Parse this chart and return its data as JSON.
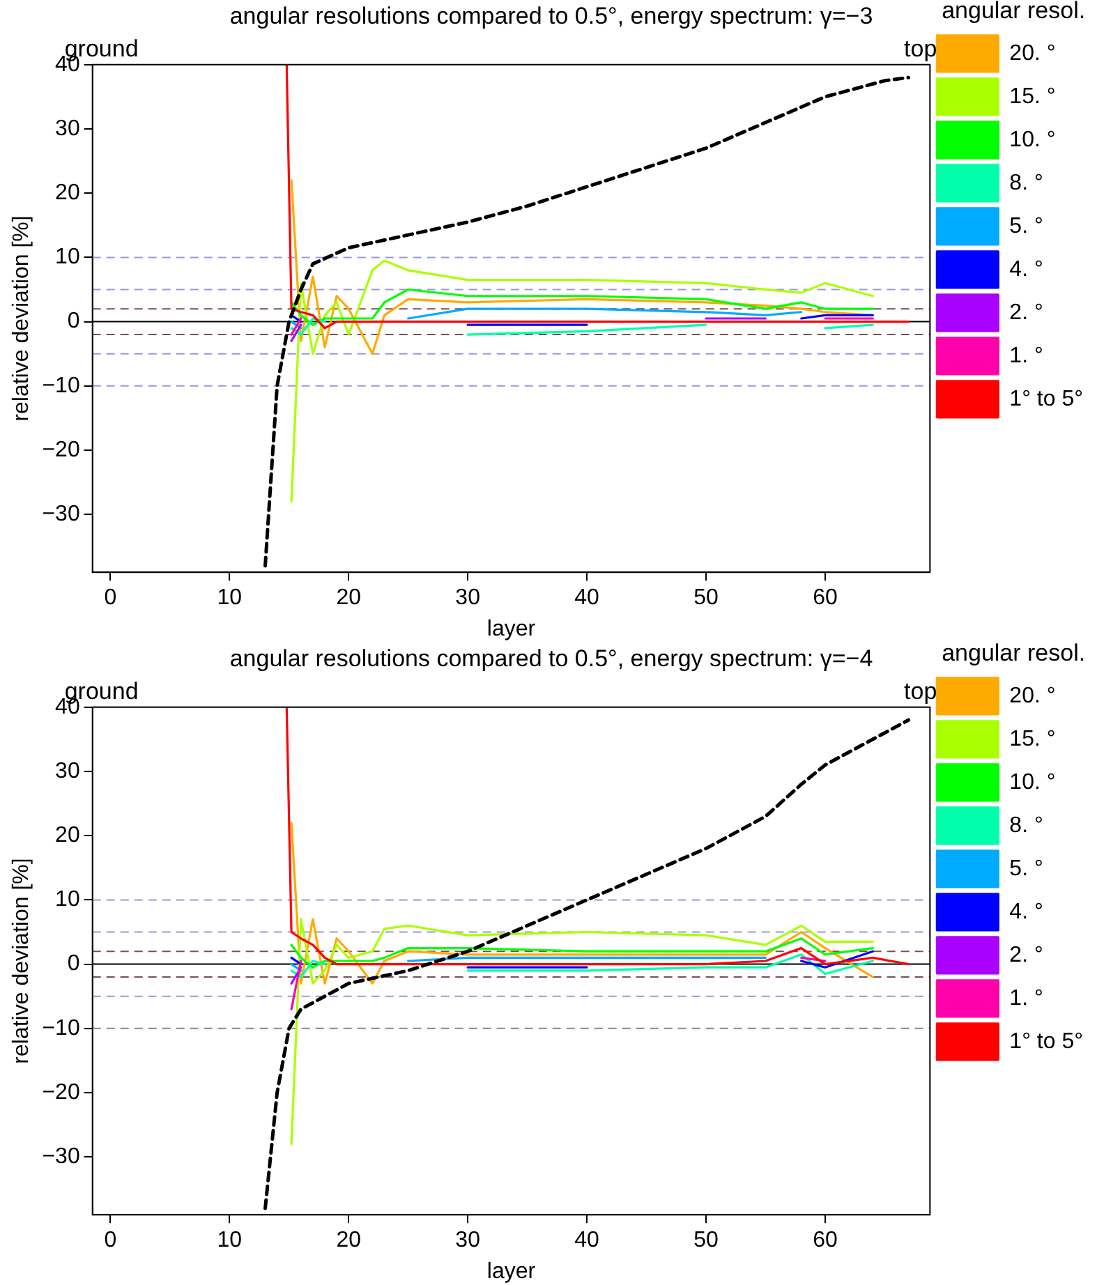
{
  "chart_data": [
    {
      "type": "line",
      "title": "angular resolutions compared to 0.5°, energy spectrum: γ=−3",
      "xlabel": "layer",
      "ylabel": "relative deviation [%]",
      "legend_title": "angular resol.",
      "legend": "right",
      "grid": false,
      "marker": "none",
      "line_style": "solid",
      "annotations": [
        "ground",
        "top"
      ],
      "xlim": [
        -1.5,
        68.8
      ],
      "ylim": [
        -39,
        40
      ],
      "xticks": [
        0,
        10,
        20,
        30,
        40,
        50,
        60
      ],
      "yticks": [
        -30,
        -20,
        -10,
        0,
        10,
        20,
        30,
        40
      ],
      "ref_lines": [
        {
          "axis": "y",
          "value": 10,
          "color": "#9999dd",
          "line_style": "dashed"
        },
        {
          "axis": "y",
          "value": 5,
          "color": "#9999dd",
          "line_style": "dashed"
        },
        {
          "axis": "y",
          "value": 2,
          "color": "#7a5050",
          "line_style": "dashed"
        },
        {
          "axis": "y",
          "value": 0,
          "color": "#000000",
          "line_style": "solid"
        },
        {
          "axis": "y",
          "value": -2,
          "color": "#7a5050",
          "line_style": "dashed"
        },
        {
          "axis": "y",
          "value": -5,
          "color": "#9999dd",
          "line_style": "dashed"
        },
        {
          "axis": "y",
          "value": -10,
          "color": "#9999dd",
          "line_style": "dashed"
        }
      ],
      "x": [
        14.8,
        15.2,
        16,
        17,
        18,
        19,
        20,
        22,
        23,
        25,
        30,
        40,
        50,
        55,
        58,
        60,
        64,
        67
      ],
      "series": [
        {
          "name": "20. °",
          "color": "#ffaa00",
          "values": [
            null,
            22,
            -3,
            7,
            -4,
            4,
            2,
            -5,
            1,
            3.5,
            3,
            3.5,
            3,
            2.5,
            2,
            1.5,
            1,
            null
          ]
        },
        {
          "name": "15. °",
          "color": "#aaff00",
          "values": [
            null,
            -28,
            6,
            -5,
            1,
            3,
            -2,
            8,
            9.5,
            8,
            6.5,
            6.5,
            6,
            5,
            4.5,
            6,
            4,
            null
          ]
        },
        {
          "name": "10. °",
          "color": "#00ff00",
          "values": [
            null,
            3,
            1,
            -0.5,
            0.5,
            0.5,
            0.5,
            0.5,
            3,
            5,
            4,
            4,
            3.5,
            2,
            3,
            2,
            2,
            null
          ]
        },
        {
          "name": "8. °",
          "color": "#00ffaa",
          "values": [
            null,
            -1,
            -2,
            0.5,
            0,
            null,
            null,
            null,
            null,
            null,
            -2,
            -1.5,
            -0.5,
            null,
            null,
            -1,
            -0.5,
            null
          ]
        },
        {
          "name": "5. °",
          "color": "#00aaff",
          "values": [
            null,
            0,
            -1,
            null,
            null,
            null,
            null,
            null,
            null,
            0.5,
            2,
            2,
            1.5,
            1,
            1.5,
            null,
            null,
            null
          ]
        },
        {
          "name": "4. °",
          "color": "#0000ff",
          "values": [
            null,
            1,
            0,
            null,
            null,
            null,
            null,
            null,
            null,
            null,
            -0.5,
            -0.5,
            null,
            null,
            0.5,
            1,
            1,
            null
          ]
        },
        {
          "name": "2. °",
          "color": "#aa00ff",
          "values": [
            null,
            -3,
            -0.5,
            null,
            null,
            null,
            null,
            null,
            null,
            null,
            null,
            null,
            0.5,
            0.5,
            null,
            null,
            null,
            null
          ]
        },
        {
          "name": "1. °",
          "color": "#ff00aa",
          "values": [
            null,
            -2,
            0.5,
            null,
            null,
            null,
            null,
            null,
            null,
            null,
            null,
            null,
            null,
            null,
            null,
            0.5,
            0.5,
            null
          ]
        },
        {
          "name": "1° to 5°",
          "color": "#ff0000",
          "values": [
            40,
            2,
            1.5,
            1,
            -1,
            0,
            0,
            0,
            0,
            0,
            0,
            0,
            0,
            0,
            0,
            0,
            0,
            0
          ]
        },
        {
          "color": "#000000",
          "line_style": "dashed",
          "x": [
            13,
            14,
            15,
            16,
            17,
            20,
            25,
            30,
            35,
            40,
            45,
            50,
            55,
            60,
            65,
            67
          ],
          "values": [
            -38,
            -10,
            0,
            5,
            9,
            11.5,
            13.5,
            15.5,
            18,
            21,
            24,
            27,
            31,
            35,
            37.5,
            38
          ]
        }
      ]
    },
    {
      "type": "line",
      "title": "angular resolutions compared to 0.5°, energy spectrum: γ=−4",
      "xlabel": "layer",
      "ylabel": "relative deviation [%]",
      "legend_title": "angular resol.",
      "legend": "right",
      "grid": false,
      "marker": "none",
      "line_style": "solid",
      "annotations": [
        "ground",
        "top"
      ],
      "xlim": [
        -1.5,
        68.8
      ],
      "ylim": [
        -39,
        40
      ],
      "xticks": [
        0,
        10,
        20,
        30,
        40,
        50,
        60
      ],
      "yticks": [
        -30,
        -20,
        -10,
        0,
        10,
        20,
        30,
        40
      ],
      "ref_lines": [
        {
          "axis": "y",
          "value": 10,
          "color": "#9999dd",
          "line_style": "dashed"
        },
        {
          "axis": "y",
          "value": 5,
          "color": "#9999dd",
          "line_style": "dashed"
        },
        {
          "axis": "y",
          "value": 2,
          "color": "#7a5050",
          "line_style": "dashed"
        },
        {
          "axis": "y",
          "value": 0,
          "color": "#000000",
          "line_style": "solid"
        },
        {
          "axis": "y",
          "value": -2,
          "color": "#7a5050",
          "line_style": "dashed"
        },
        {
          "axis": "y",
          "value": -5,
          "color": "#9999dd",
          "line_style": "dashed"
        },
        {
          "axis": "y",
          "value": -10,
          "color": "#888888",
          "line_style": "dashed"
        }
      ],
      "x": [
        14.8,
        15.2,
        16,
        17,
        18,
        19,
        20,
        22,
        23,
        25,
        30,
        40,
        50,
        55,
        58,
        60,
        64,
        67
      ],
      "series": [
        {
          "name": "20. °",
          "color": "#ffaa00",
          "values": [
            null,
            22,
            -3,
            7,
            -3,
            4,
            2,
            -3,
            0.5,
            2,
            1.5,
            1.5,
            1.5,
            1.5,
            5,
            2.5,
            -2,
            null
          ]
        },
        {
          "name": "15. °",
          "color": "#aaff00",
          "values": [
            null,
            -28,
            7,
            -3,
            -1,
            3,
            1,
            2,
            5.5,
            6,
            4.5,
            5,
            4.5,
            3,
            6,
            3.5,
            3.5,
            null
          ]
        },
        {
          "name": "10. °",
          "color": "#00ff00",
          "values": [
            null,
            3,
            1,
            -0.5,
            0.5,
            0.5,
            0.5,
            0.5,
            1,
            2.5,
            2.5,
            2,
            2,
            2,
            4,
            1.5,
            2.5,
            null
          ]
        },
        {
          "name": "8. °",
          "color": "#00ffaa",
          "values": [
            null,
            -1,
            -2,
            0.5,
            0,
            null,
            null,
            null,
            null,
            null,
            -1,
            -1,
            -0.5,
            -0.5,
            1.5,
            -1.5,
            0.5,
            null
          ]
        },
        {
          "name": "5. °",
          "color": "#00aaff",
          "values": [
            null,
            0,
            -1,
            null,
            null,
            null,
            null,
            null,
            null,
            0.5,
            1,
            1,
            1,
            1,
            null,
            null,
            null,
            null
          ]
        },
        {
          "name": "4. °",
          "color": "#0000ff",
          "values": [
            null,
            1,
            0,
            null,
            null,
            null,
            null,
            null,
            null,
            null,
            -0.5,
            -0.5,
            null,
            null,
            0.5,
            -0.5,
            2,
            null
          ]
        },
        {
          "name": "2. °",
          "color": "#aa00ff",
          "values": [
            null,
            -3,
            -0.5,
            null,
            null,
            null,
            null,
            null,
            null,
            null,
            null,
            null,
            null,
            null,
            null,
            null,
            null,
            null
          ]
        },
        {
          "name": "1. °",
          "color": "#ff00aa",
          "values": [
            null,
            -7,
            0.5,
            null,
            null,
            null,
            null,
            null,
            null,
            null,
            null,
            null,
            null,
            null,
            1,
            0.5,
            null,
            null
          ]
        },
        {
          "name": "1° to 5°",
          "color": "#ff0000",
          "values": [
            40,
            5,
            4,
            3,
            1,
            0,
            0,
            0,
            0,
            0,
            0,
            0,
            0,
            0.5,
            2.5,
            0,
            1,
            0
          ]
        },
        {
          "color": "#000000",
          "line_style": "dashed",
          "x": [
            13,
            14,
            15,
            16,
            18,
            20,
            25,
            30,
            35,
            40,
            45,
            50,
            55,
            58,
            60,
            65,
            67
          ],
          "values": [
            -38,
            -20,
            -10,
            -7,
            -5,
            -3,
            -1,
            2,
            6,
            10,
            14,
            18,
            23,
            28,
            31,
            36,
            38
          ]
        }
      ]
    }
  ]
}
